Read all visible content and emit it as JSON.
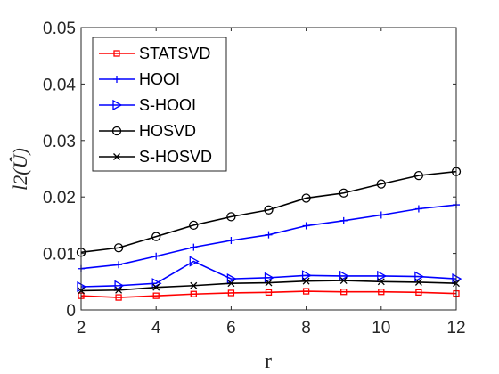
{
  "chart_data": {
    "type": "line",
    "title": "",
    "xlabel": "r",
    "ylabel": "l2(Û)",
    "x": [
      2,
      3,
      4,
      5,
      6,
      7,
      8,
      9,
      10,
      11,
      12
    ],
    "xlim": [
      2,
      12
    ],
    "ylim": [
      0,
      0.05
    ],
    "xticks": [
      "2",
      "4",
      "6",
      "8",
      "10",
      "12"
    ],
    "yticks": [
      "0",
      "0.01",
      "0.02",
      "0.03",
      "0.04",
      "0.05"
    ],
    "grid": false,
    "legend_position": "top-left",
    "series": [
      {
        "name": "STATSVD",
        "color": "#ff0000",
        "marker": "square",
        "values": [
          0.0025,
          0.0022,
          0.0025,
          0.0028,
          0.003,
          0.0031,
          0.0033,
          0.0032,
          0.0032,
          0.0031,
          0.0029
        ]
      },
      {
        "name": "HOOI",
        "color": "#0000ff",
        "marker": "plus",
        "values": [
          0.0073,
          0.008,
          0.0095,
          0.0111,
          0.0123,
          0.0133,
          0.0149,
          0.0158,
          0.0168,
          0.0179,
          0.0186
        ]
      },
      {
        "name": "S-HOOI",
        "color": "#0000ff",
        "marker": "triangle-right",
        "values": [
          0.0041,
          0.0043,
          0.0047,
          0.0086,
          0.0055,
          0.0057,
          0.0061,
          0.006,
          0.006,
          0.0059,
          0.0055
        ]
      },
      {
        "name": "HOSVD",
        "color": "#000000",
        "marker": "circle",
        "values": [
          0.0102,
          0.011,
          0.013,
          0.015,
          0.0165,
          0.0177,
          0.0198,
          0.0207,
          0.0223,
          0.0238,
          0.0245
        ]
      },
      {
        "name": "S-HOSVD",
        "color": "#000000",
        "marker": "x",
        "values": [
          0.0034,
          0.0035,
          0.004,
          0.0043,
          0.0047,
          0.0048,
          0.0051,
          0.0052,
          0.005,
          0.0049,
          0.0047
        ]
      }
    ]
  }
}
